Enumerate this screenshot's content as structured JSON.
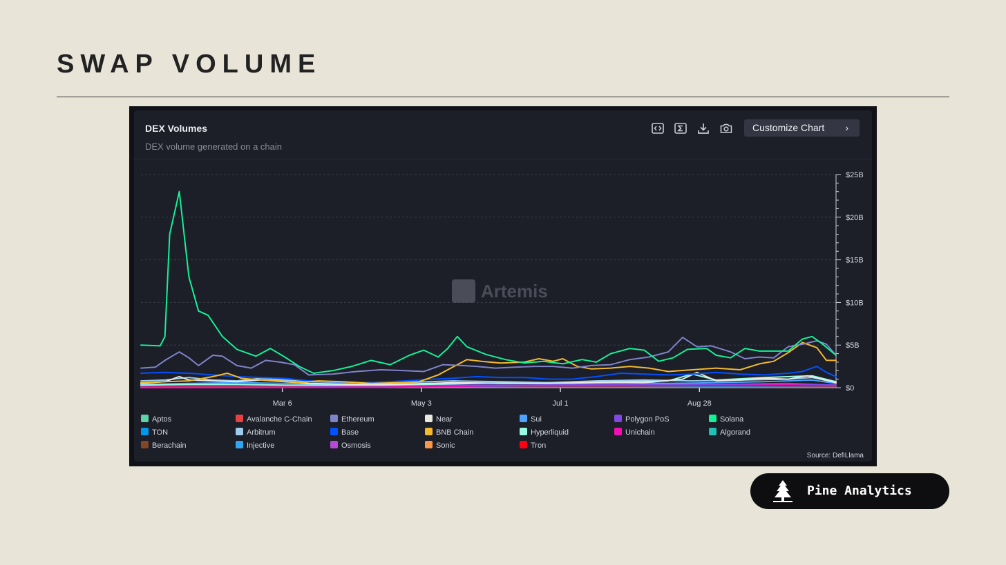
{
  "slide": {
    "title": "SWAP VOLUME"
  },
  "card": {
    "title": "DEX Volumes",
    "subtitle": "DEX volume generated on a chain",
    "customize_label": "Customize Chart",
    "toolbar_icons": [
      "embed-icon",
      "sigma-icon",
      "download-icon",
      "camera-icon"
    ],
    "watermark": "Artemis",
    "source": "Source: DefiLlama"
  },
  "brand": {
    "name": "Pine Analytics",
    "icon": "pine-tree-icon"
  },
  "legend": [
    {
      "label": "Aptos",
      "color": "#5fd3a8"
    },
    {
      "label": "Avalanche C-Chain",
      "color": "#e84142"
    },
    {
      "label": "Ethereum",
      "color": "#7f84c9"
    },
    {
      "label": "Near",
      "color": "#e8e8e0"
    },
    {
      "label": "Sui",
      "color": "#4da2ff"
    },
    {
      "label": "Polygon PoS",
      "color": "#8247e5"
    },
    {
      "label": "Solana",
      "color": "#14f195"
    },
    {
      "label": "TON",
      "color": "#0098ea"
    },
    {
      "label": "Arbitrum",
      "color": "#9dcced"
    },
    {
      "label": "Base",
      "color": "#0052ff"
    },
    {
      "label": "BNB Chain",
      "color": "#f3ba2f"
    },
    {
      "label": "Hyperliquid",
      "color": "#97fce4"
    },
    {
      "label": "Unichain",
      "color": "#f50db4"
    },
    {
      "label": "Algorand",
      "color": "#1ec2b4"
    },
    {
      "label": "Berachain",
      "color": "#814625"
    },
    {
      "label": "Injective",
      "color": "#2ea6f2"
    },
    {
      "label": "Osmosis",
      "color": "#b34bd6"
    },
    {
      "label": "Sonic",
      "color": "#f8964a"
    },
    {
      "label": "Tron",
      "color": "#ff0013"
    }
  ],
  "chart_data": {
    "type": "line",
    "title": "DEX Volumes",
    "subtitle": "DEX volume generated on a chain",
    "x_ticks": [
      "Mar 6",
      "May 3",
      "Jul 1",
      "Aug 28"
    ],
    "x_tick_positions": [
      59,
      117,
      175,
      233
    ],
    "xlim": [
      0,
      290
    ],
    "y_ticks": [
      "$0",
      "$5B",
      "$10B",
      "$15B",
      "$20B",
      "$25B"
    ],
    "y_tick_values": [
      0,
      5,
      10,
      15,
      20,
      25
    ],
    "ylim": [
      0,
      25
    ],
    "y_unit": "billions USD",
    "y_axis_side": "right",
    "grid": "horizontal dashed",
    "legend_position": "bottom",
    "series": [
      {
        "name": "Solana",
        "color": "#14f195",
        "points": [
          [
            0,
            5
          ],
          [
            8,
            4.9
          ],
          [
            10,
            6
          ],
          [
            12,
            18
          ],
          [
            16,
            23
          ],
          [
            20,
            13
          ],
          [
            24,
            9
          ],
          [
            28,
            8.5
          ],
          [
            34,
            6
          ],
          [
            40,
            4.5
          ],
          [
            48,
            3.7
          ],
          [
            54,
            4.6
          ],
          [
            60,
            3.6
          ],
          [
            66,
            2.5
          ],
          [
            72,
            1.7
          ],
          [
            80,
            2
          ],
          [
            88,
            2.5
          ],
          [
            96,
            3.2
          ],
          [
            104,
            2.7
          ],
          [
            112,
            3.8
          ],
          [
            118,
            4.4
          ],
          [
            124,
            3.6
          ],
          [
            128,
            4.6
          ],
          [
            132,
            6
          ],
          [
            136,
            4.8
          ],
          [
            144,
            3.9
          ],
          [
            152,
            3.3
          ],
          [
            160,
            2.9
          ],
          [
            168,
            3.1
          ],
          [
            176,
            2.8
          ],
          [
            184,
            3.3
          ],
          [
            190,
            3
          ],
          [
            196,
            4
          ],
          [
            204,
            4.6
          ],
          [
            210,
            4.4
          ],
          [
            216,
            3.1
          ],
          [
            222,
            3.5
          ],
          [
            228,
            4.5
          ],
          [
            236,
            4.6
          ],
          [
            240,
            3.8
          ],
          [
            246,
            3.5
          ],
          [
            252,
            4.6
          ],
          [
            258,
            4.3
          ],
          [
            264,
            4.3
          ],
          [
            270,
            4.3
          ],
          [
            276,
            5.7
          ],
          [
            280,
            6
          ],
          [
            284,
            5.2
          ],
          [
            290,
            3.8
          ]
        ]
      },
      {
        "name": "Ethereum",
        "color": "#7f84c9",
        "points": [
          [
            0,
            2.3
          ],
          [
            6,
            2.4
          ],
          [
            10,
            3.2
          ],
          [
            16,
            4.2
          ],
          [
            20,
            3.5
          ],
          [
            24,
            2.6
          ],
          [
            30,
            3.8
          ],
          [
            34,
            3.7
          ],
          [
            40,
            2.6
          ],
          [
            46,
            2.3
          ],
          [
            52,
            3.2
          ],
          [
            58,
            3
          ],
          [
            64,
            2.7
          ],
          [
            70,
            1.5
          ],
          [
            80,
            1.6
          ],
          [
            90,
            1.9
          ],
          [
            100,
            2.1
          ],
          [
            110,
            2
          ],
          [
            118,
            1.9
          ],
          [
            126,
            2.7
          ],
          [
            134,
            2.6
          ],
          [
            140,
            2.5
          ],
          [
            148,
            2.3
          ],
          [
            156,
            2.4
          ],
          [
            164,
            2.5
          ],
          [
            172,
            2.5
          ],
          [
            180,
            2.3
          ],
          [
            188,
            2.6
          ],
          [
            196,
            2.7
          ],
          [
            204,
            3.3
          ],
          [
            212,
            3.6
          ],
          [
            220,
            4.2
          ],
          [
            226,
            5.9
          ],
          [
            232,
            4.8
          ],
          [
            238,
            4.9
          ],
          [
            246,
            4.2
          ],
          [
            252,
            3.4
          ],
          [
            258,
            3.6
          ],
          [
            264,
            3.5
          ],
          [
            270,
            4.8
          ],
          [
            276,
            5.1
          ],
          [
            282,
            5.5
          ],
          [
            286,
            5.1
          ],
          [
            290,
            3.8
          ]
        ]
      },
      {
        "name": "BNB Chain",
        "color": "#f3ba2f",
        "points": [
          [
            0,
            0.6
          ],
          [
            10,
            0.7
          ],
          [
            20,
            0.8
          ],
          [
            30,
            1.3
          ],
          [
            36,
            1.7
          ],
          [
            42,
            1.1
          ],
          [
            50,
            0.9
          ],
          [
            58,
            0.8
          ],
          [
            66,
            0.6
          ],
          [
            74,
            0.8
          ],
          [
            84,
            0.7
          ],
          [
            96,
            0.5
          ],
          [
            108,
            0.6
          ],
          [
            116,
            0.7
          ],
          [
            124,
            1.5
          ],
          [
            130,
            2.4
          ],
          [
            136,
            3.3
          ],
          [
            142,
            3.1
          ],
          [
            150,
            2.9
          ],
          [
            160,
            3
          ],
          [
            166,
            3.4
          ],
          [
            172,
            3.1
          ],
          [
            176,
            3.4
          ],
          [
            182,
            2.5
          ],
          [
            188,
            2.2
          ],
          [
            196,
            2.3
          ],
          [
            204,
            2.5
          ],
          [
            212,
            2.3
          ],
          [
            220,
            1.9
          ],
          [
            230,
            2.1
          ],
          [
            240,
            2.3
          ],
          [
            250,
            2.1
          ],
          [
            258,
            2.8
          ],
          [
            264,
            3.1
          ],
          [
            270,
            4.1
          ],
          [
            276,
            5.3
          ],
          [
            282,
            4.7
          ],
          [
            286,
            3.2
          ],
          [
            290,
            3.2
          ]
        ]
      },
      {
        "name": "Base",
        "color": "#0052ff",
        "points": [
          [
            0,
            1.7
          ],
          [
            10,
            1.8
          ],
          [
            20,
            1.7
          ],
          [
            30,
            1.5
          ],
          [
            40,
            1.3
          ],
          [
            50,
            1.2
          ],
          [
            60,
            1.1
          ],
          [
            70,
            0.8
          ],
          [
            80,
            0.7
          ],
          [
            96,
            0.6
          ],
          [
            110,
            0.8
          ],
          [
            122,
            1
          ],
          [
            130,
            1.1
          ],
          [
            140,
            1.3
          ],
          [
            150,
            1.2
          ],
          [
            160,
            1.2
          ],
          [
            170,
            1
          ],
          [
            180,
            1
          ],
          [
            190,
            1.3
          ],
          [
            200,
            1.7
          ],
          [
            210,
            1.6
          ],
          [
            220,
            1.5
          ],
          [
            230,
            1.6
          ],
          [
            240,
            1.8
          ],
          [
            250,
            1.6
          ],
          [
            260,
            1.5
          ],
          [
            270,
            1.7
          ],
          [
            276,
            1.9
          ],
          [
            282,
            2.5
          ],
          [
            286,
            1.8
          ],
          [
            290,
            1.3
          ]
        ]
      },
      {
        "name": "Near",
        "color": "#e8e8e0",
        "points": [
          [
            0,
            0.5
          ],
          [
            10,
            0.7
          ],
          [
            16,
            1.3
          ],
          [
            20,
            0.9
          ],
          [
            30,
            0.8
          ],
          [
            40,
            0.7
          ],
          [
            50,
            0.9
          ],
          [
            60,
            0.7
          ],
          [
            70,
            0.5
          ],
          [
            90,
            0.4
          ],
          [
            110,
            0.4
          ],
          [
            130,
            0.6
          ],
          [
            150,
            0.5
          ],
          [
            170,
            0.5
          ],
          [
            190,
            0.6
          ],
          [
            210,
            0.6
          ],
          [
            226,
            1
          ],
          [
            232,
            1.8
          ],
          [
            236,
            1.3
          ],
          [
            240,
            0.8
          ],
          [
            250,
            0.9
          ],
          [
            260,
            1.1
          ],
          [
            270,
            1
          ],
          [
            278,
            1.4
          ],
          [
            284,
            1
          ],
          [
            290,
            0.6
          ]
        ]
      },
      {
        "name": "Arbitrum",
        "color": "#9dcced",
        "points": [
          [
            0,
            0.8
          ],
          [
            10,
            0.9
          ],
          [
            20,
            1.2
          ],
          [
            30,
            0.9
          ],
          [
            40,
            0.8
          ],
          [
            50,
            1.1
          ],
          [
            60,
            0.9
          ],
          [
            70,
            0.7
          ],
          [
            90,
            0.6
          ],
          [
            110,
            0.6
          ],
          [
            130,
            0.8
          ],
          [
            150,
            0.7
          ],
          [
            170,
            0.6
          ],
          [
            190,
            0.8
          ],
          [
            210,
            0.9
          ],
          [
            230,
            0.8
          ],
          [
            250,
            0.9
          ],
          [
            270,
            1
          ],
          [
            280,
            1.2
          ],
          [
            290,
            0.6
          ]
        ]
      },
      {
        "name": "Hyperliquid",
        "color": "#97fce4",
        "points": [
          [
            0,
            0.3
          ],
          [
            20,
            0.4
          ],
          [
            40,
            0.4
          ],
          [
            60,
            0.3
          ],
          [
            80,
            0.3
          ],
          [
            100,
            0.3
          ],
          [
            120,
            0.4
          ],
          [
            140,
            0.5
          ],
          [
            160,
            0.6
          ],
          [
            180,
            0.6
          ],
          [
            200,
            0.7
          ],
          [
            220,
            0.8
          ],
          [
            230,
            1.6
          ],
          [
            240,
            0.9
          ],
          [
            260,
            1.2
          ],
          [
            280,
            1.4
          ],
          [
            290,
            0.7
          ]
        ]
      },
      {
        "name": "Sui",
        "color": "#4da2ff",
        "points": [
          [
            0,
            0.4
          ],
          [
            20,
            0.5
          ],
          [
            40,
            0.6
          ],
          [
            60,
            0.5
          ],
          [
            80,
            0.4
          ],
          [
            100,
            0.4
          ],
          [
            120,
            0.5
          ],
          [
            140,
            0.6
          ],
          [
            160,
            0.5
          ],
          [
            180,
            0.5
          ],
          [
            200,
            0.6
          ],
          [
            220,
            0.5
          ],
          [
            240,
            0.6
          ],
          [
            260,
            0.7
          ],
          [
            280,
            0.9
          ],
          [
            290,
            0.5
          ]
        ]
      },
      {
        "name": "Polygon PoS",
        "color": "#8247e5",
        "points": [
          [
            0,
            0.2
          ],
          [
            40,
            0.3
          ],
          [
            80,
            0.2
          ],
          [
            120,
            0.3
          ],
          [
            160,
            0.3
          ],
          [
            200,
            0.4
          ],
          [
            240,
            0.4
          ],
          [
            270,
            0.5
          ],
          [
            290,
            0.3
          ]
        ]
      },
      {
        "name": "Unichain",
        "color": "#f50db4",
        "points": [
          [
            0,
            0
          ],
          [
            100,
            0.05
          ],
          [
            130,
            0.15
          ],
          [
            160,
            0.25
          ],
          [
            200,
            0.3
          ],
          [
            240,
            0.35
          ],
          [
            270,
            0.4
          ],
          [
            290,
            0.3
          ]
        ]
      },
      {
        "name": "Tron",
        "color": "#ff0013",
        "points": [
          [
            0,
            0.15
          ],
          [
            40,
            0.2
          ],
          [
            80,
            0.2
          ],
          [
            120,
            0.25
          ],
          [
            160,
            0.2
          ],
          [
            200,
            0.2
          ],
          [
            240,
            0.25
          ],
          [
            290,
            0.2
          ]
        ]
      },
      {
        "name": "TON",
        "color": "#0098ea",
        "points": [
          [
            0,
            0.1
          ],
          [
            60,
            0.1
          ],
          [
            120,
            0.1
          ],
          [
            180,
            0.1
          ],
          [
            240,
            0.1
          ],
          [
            290,
            0.1
          ]
        ]
      },
      {
        "name": "Aptos",
        "color": "#5fd3a8",
        "points": [
          [
            0,
            0.15
          ],
          [
            60,
            0.15
          ],
          [
            120,
            0.1
          ],
          [
            180,
            0.1
          ],
          [
            240,
            0.1
          ],
          [
            290,
            0.1
          ]
        ]
      }
    ]
  }
}
